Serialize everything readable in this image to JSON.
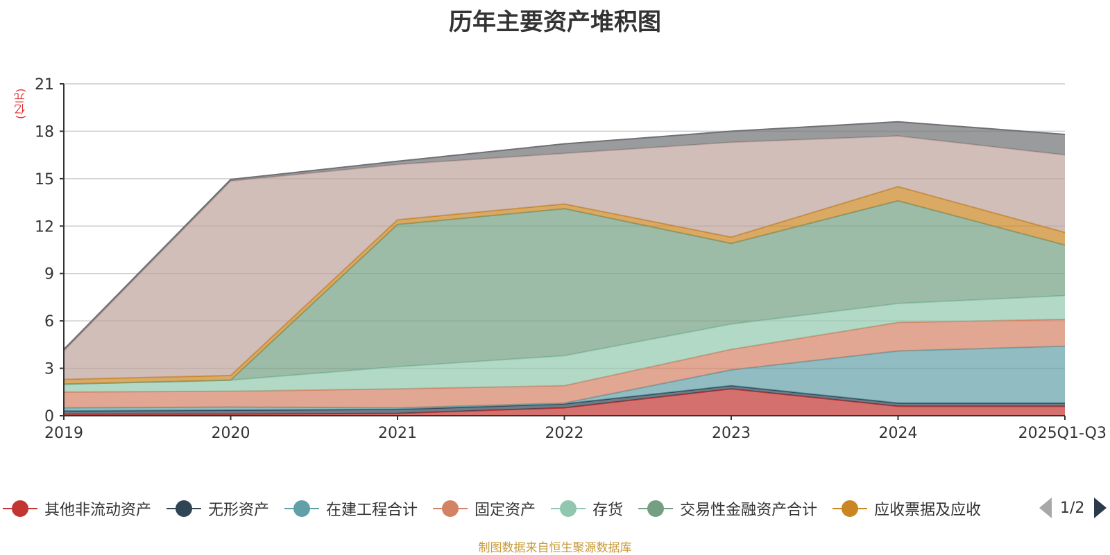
{
  "title": "历年主要资产堆积图",
  "unit_label": "(亿元)",
  "source_text": "制图数据来自恒生聚源数据库",
  "pager": {
    "text": "1/2"
  },
  "chart_data": {
    "type": "area",
    "stacked": true,
    "title": "历年主要资产堆积图",
    "ylabel": "(亿元)",
    "xlabel": "",
    "ylim": [
      0,
      21
    ],
    "yticks": [
      0,
      3,
      6,
      9,
      12,
      15,
      18,
      21
    ],
    "grid": true,
    "legend_position": "bottom",
    "categories": [
      "2019",
      "2020",
      "2021",
      "2022",
      "2023",
      "2024",
      "2025Q1-Q3"
    ],
    "series": [
      {
        "name": "其他非流动资产",
        "color": "#c23531",
        "values": [
          0.1,
          0.1,
          0.15,
          0.5,
          1.7,
          0.6,
          0.6
        ]
      },
      {
        "name": "无形资产",
        "color": "#2f4554",
        "values": [
          0.2,
          0.25,
          0.25,
          0.25,
          0.2,
          0.2,
          0.2
        ]
      },
      {
        "name": "在建工程合计",
        "color": "#61a0a8",
        "values": [
          0.2,
          0.2,
          0.1,
          0.05,
          1.0,
          3.3,
          3.6
        ]
      },
      {
        "name": "固定资产",
        "color": "#d48265",
        "values": [
          1.0,
          1.0,
          1.2,
          1.1,
          1.3,
          1.8,
          1.7
        ]
      },
      {
        "name": "存货",
        "color": "#91c7ae",
        "values": [
          0.5,
          0.7,
          1.4,
          1.9,
          1.6,
          1.2,
          1.5
        ]
      },
      {
        "name": "交易性金融资产合计",
        "color": "#749f83",
        "values": [
          0.0,
          0.0,
          9.0,
          9.3,
          5.1,
          6.5,
          3.2
        ]
      },
      {
        "name": "应收票据及应收",
        "color": "#ca8622",
        "values": [
          0.3,
          0.3,
          0.3,
          0.3,
          0.4,
          0.9,
          0.8
        ]
      },
      {
        "name": "",
        "color": "#bda29a",
        "values": [
          1.8,
          12.3,
          3.5,
          3.2,
          6.0,
          3.2,
          4.9
        ]
      },
      {
        "name": "",
        "color": "#6e7074",
        "values": [
          0.1,
          0.1,
          0.2,
          0.6,
          0.7,
          0.9,
          1.3
        ]
      }
    ]
  }
}
